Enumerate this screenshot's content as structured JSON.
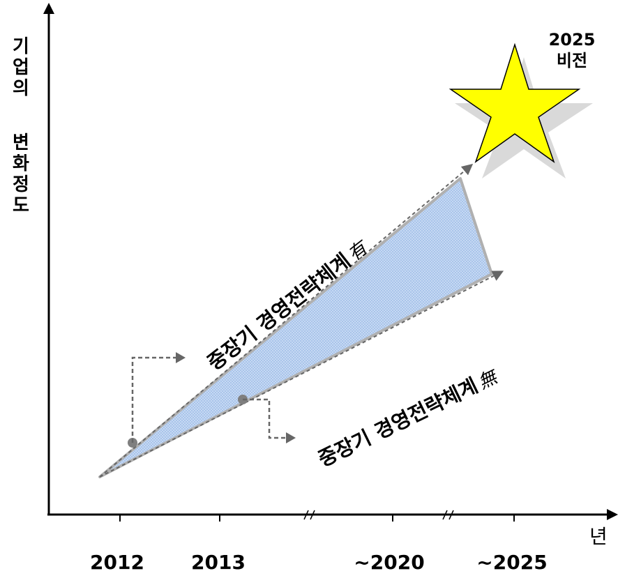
{
  "y_axis_label": {
    "part1": [
      "기",
      "업",
      "의"
    ],
    "part2": [
      "변",
      "화",
      "정",
      "도"
    ]
  },
  "x_axis": {
    "unit_label": "년",
    "ticks": [
      "2012",
      "2013",
      "~2020",
      "~2025"
    ]
  },
  "vision": {
    "line1": "2025",
    "line2": "비전"
  },
  "upper_path": {
    "text": "중장기 경영전략체계",
    "suffix": "有"
  },
  "lower_path": {
    "text": "중장기 경영전략체계",
    "suffix": "無"
  },
  "colors": {
    "axis": "#000000",
    "wedge_fill": "#a9c4ea",
    "wedge_border": "#b0b0b0",
    "arrow": "#666666",
    "marker": "#7f7f7f",
    "star_fill": "#ffff00",
    "star_shadow": "#d9d9d9"
  }
}
